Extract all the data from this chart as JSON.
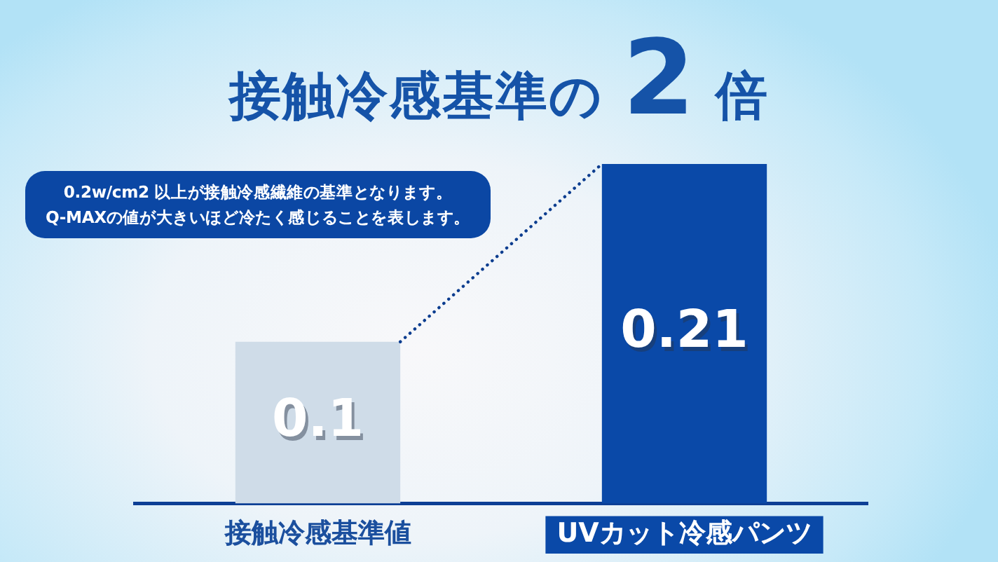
{
  "chart_data": {
    "type": "bar",
    "title": "接触冷感基準の 2 倍",
    "categories": [
      "接触冷感基準値",
      "UVカット冷感パンツ"
    ],
    "values": [
      0.1,
      0.21
    ],
    "colors": [
      "#cfdce8",
      "#0a49a8"
    ],
    "data_labels": true,
    "annotations": [
      "0.2w/cm2 以上が接触冷感繊維の基準となります。\nQ-MAXの値が大きいほど冷たく感じることを表します。"
    ],
    "grid": false,
    "legend": false,
    "tick_labels": "x"
  }
}
